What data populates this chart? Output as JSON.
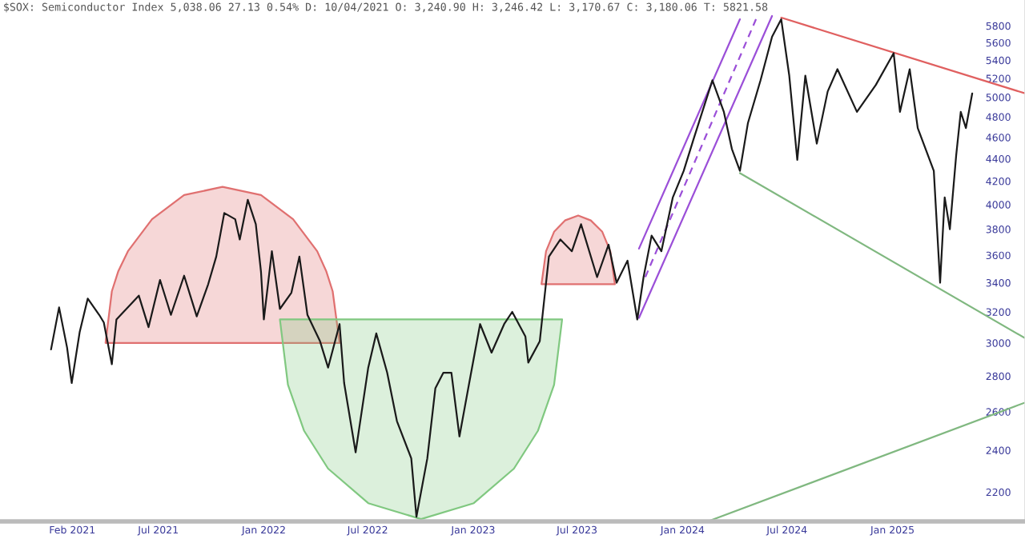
{
  "chart_data": {
    "type": "line",
    "title": "$SOX: Semiconductor Index 5,038.06 27.13 0.54% D: 10/04/2021 O: 3,240.90 H: 3,246.42 L: 3,170.67 C: 3,180.06 T: 5821.58",
    "log": "y",
    "grid": false,
    "legend": false,
    "marker": "none",
    "xlim": [
      "2020-09-28",
      "2025-08-20"
    ],
    "xticks": [
      {
        "value": "2021-02-01",
        "label": "Feb 2021"
      },
      {
        "value": "2021-07-01",
        "label": "Jul 2021"
      },
      {
        "value": "2022-01-01",
        "label": "Jan 2022"
      },
      {
        "value": "2022-07-01",
        "label": "Jul 2022"
      },
      {
        "value": "2023-01-01",
        "label": "Jan 2023"
      },
      {
        "value": "2023-07-01",
        "label": "Jul 2023"
      },
      {
        "value": "2024-01-01",
        "label": "Jan 2024"
      },
      {
        "value": "2024-07-01",
        "label": "Jul 2024"
      },
      {
        "value": "2025-01-01",
        "label": "Jan 2025"
      }
    ],
    "ylim": [
      2070,
      6120
    ],
    "yticks": [
      2200,
      2400,
      2600,
      2800,
      3000,
      3200,
      3400,
      3600,
      3800,
      4000,
      4200,
      4400,
      4600,
      4800,
      5000,
      5200,
      5400,
      5600,
      5800
    ],
    "series": [
      {
        "type": "area",
        "color": "#e07070",
        "x": [
          "2021-03-31",
          "2021-04-11",
          "2021-04-22",
          "2021-05-09",
          "2021-06-20",
          "2021-08-15",
          "2021-10-21",
          "2021-12-27",
          "2022-02-21",
          "2022-04-04",
          "2022-04-20",
          "2022-05-01",
          "2022-05-13"
        ],
        "values": [
          3000,
          3340,
          3480,
          3630,
          3880,
          4080,
          4150,
          4080,
          3880,
          3630,
          3480,
          3340,
          3000
        ]
      },
      {
        "type": "area",
        "color": "#80c880",
        "x": [
          "2022-01-29",
          "2022-02-12",
          "2022-03-12",
          "2022-04-23",
          "2022-07-02",
          "2022-10-02",
          "2023-01-02",
          "2023-03-13",
          "2023-04-24",
          "2023-05-22",
          "2023-06-05"
        ],
        "values": [
          3150,
          2750,
          2500,
          2310,
          2150,
          2080,
          2150,
          2310,
          2500,
          2750,
          3150
        ]
      },
      {
        "type": "area",
        "color": "#e07070",
        "x": [
          "2023-04-30",
          "2023-05-08",
          "2023-05-22",
          "2023-06-10",
          "2023-07-03",
          "2023-07-25",
          "2023-08-14",
          "2023-08-28",
          "2023-09-05"
        ],
        "values": [
          3390,
          3630,
          3780,
          3870,
          3910,
          3870,
          3780,
          3630,
          3390
        ]
      },
      {
        "type": "line",
        "color": "#9b4fd8",
        "line_style": "solid",
        "x": [
          "2023-10-17",
          "2024-04-10"
        ],
        "values": [
          3650,
          5880
        ]
      },
      {
        "type": "line",
        "color": "#9b4fd8",
        "line_style": "solid",
        "x": [
          "2023-10-17",
          "2024-06-05"
        ],
        "values": [
          3160,
          5920
        ]
      },
      {
        "type": "line",
        "color": "#9b4fd8",
        "line_style": "dashed",
        "x": [
          "2023-10-28",
          "2024-05-08"
        ],
        "values": [
          3440,
          5880
        ]
      },
      {
        "type": "line",
        "color": "#e06060",
        "line_style": "solid",
        "x": [
          "2024-06-21",
          "2025-08-20"
        ],
        "values": [
          5900,
          5040
        ]
      },
      {
        "type": "line",
        "color": "#80b880",
        "line_style": "solid",
        "x": [
          "2024-04-10",
          "2025-08-20"
        ],
        "values": [
          4270,
          3030
        ]
      },
      {
        "type": "line",
        "color": "#80b880",
        "line_style": "solid",
        "x": [
          "2024-02-14",
          "2025-08-20"
        ],
        "values": [
          2070,
          2650
        ]
      },
      {
        "color": "#1a1a1a",
        "line_style": "solid",
        "x": [
          "2020-12-26",
          "2021-01-09",
          "2021-01-23",
          "2021-01-31",
          "2021-02-14",
          "2021-02-28",
          "2021-03-20",
          "2021-03-28",
          "2021-04-11",
          "2021-04-19",
          "2021-05-28",
          "2021-06-14",
          "2021-07-04",
          "2021-07-23",
          "2021-08-15",
          "2021-09-06",
          "2021-09-26",
          "2021-10-10",
          "2021-10-24",
          "2021-11-12",
          "2021-11-20",
          "2021-12-04",
          "2021-12-18",
          "2021-12-27",
          "2022-01-01",
          "2022-01-15",
          "2022-01-29",
          "2022-02-18",
          "2022-03-04",
          "2022-03-18",
          "2022-04-09",
          "2022-04-23",
          "2022-05-13",
          "2022-05-21",
          "2022-06-10",
          "2022-07-02",
          "2022-07-16",
          "2022-08-04",
          "2022-08-21",
          "2022-09-15",
          "2022-09-24",
          "2022-10-13",
          "2022-10-27",
          "2022-11-10",
          "2022-11-24",
          "2022-12-08",
          "2022-12-25",
          "2023-01-13",
          "2023-02-02",
          "2023-02-24",
          "2023-03-10",
          "2023-04-02",
          "2023-04-07",
          "2023-04-27",
          "2023-05-05",
          "2023-05-13",
          "2023-06-02",
          "2023-06-22",
          "2023-07-08",
          "2023-08-05",
          "2023-08-25",
          "2023-09-08",
          "2023-09-27",
          "2023-10-14",
          "2023-10-25",
          "2023-11-08",
          "2023-11-25",
          "2023-12-15",
          "2024-01-03",
          "2024-01-20",
          "2024-02-22",
          "2024-03-13",
          "2024-03-27",
          "2024-04-10",
          "2024-04-24",
          "2024-05-16",
          "2024-06-05",
          "2024-06-21",
          "2024-07-05",
          "2024-07-19",
          "2024-08-02",
          "2024-08-22",
          "2024-09-10",
          "2024-09-27",
          "2024-10-31",
          "2024-12-03",
          "2025-01-03",
          "2025-01-14",
          "2025-01-31",
          "2025-02-14",
          "2025-03-14",
          "2025-03-25",
          "2025-04-02",
          "2025-04-11",
          "2025-04-22",
          "2025-04-30",
          "2025-05-09",
          "2025-05-20"
        ],
        "values": [
          2960,
          3230,
          2970,
          2760,
          3070,
          3290,
          3180,
          3130,
          2870,
          3150,
          3310,
          3100,
          3420,
          3180,
          3450,
          3170,
          3390,
          3590,
          3930,
          3880,
          3720,
          4040,
          3840,
          3480,
          3150,
          3630,
          3220,
          3330,
          3590,
          3180,
          3010,
          2850,
          3120,
          2760,
          2390,
          2850,
          3060,
          2820,
          2550,
          2360,
          2090,
          2360,
          2730,
          2820,
          2820,
          2470,
          2760,
          3120,
          2940,
          3120,
          3200,
          3040,
          2880,
          3010,
          3290,
          3590,
          3720,
          3630,
          3840,
          3440,
          3680,
          3400,
          3560,
          3150,
          3440,
          3750,
          3630,
          4060,
          4290,
          4580,
          5180,
          4850,
          4490,
          4290,
          4740,
          5180,
          5670,
          5880,
          5230,
          4390,
          5230,
          4540,
          5060,
          5300,
          4850,
          5130,
          5480,
          4850,
          5300,
          4690,
          4290,
          3400,
          4060,
          3800,
          4430,
          4850,
          4690,
          5040
        ]
      }
    ]
  }
}
